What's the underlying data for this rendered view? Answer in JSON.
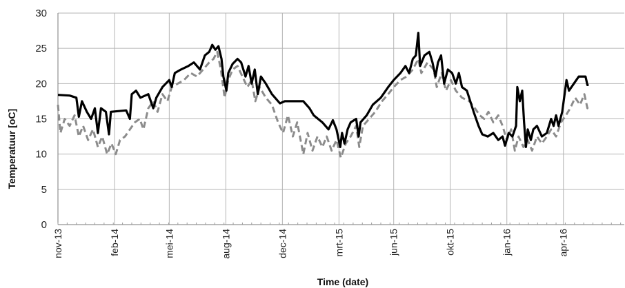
{
  "chart_data": {
    "type": "line",
    "xlabel": "Time (date)",
    "ylabel": "Temperatuur [oC]",
    "ylim": [
      0,
      30
    ],
    "yticks": [
      0,
      5,
      10,
      15,
      20,
      25,
      30
    ],
    "xlim": [
      "2013-11-01",
      "2016-05-10"
    ],
    "xticks": [
      {
        "date": "2013-11-01",
        "label": "nov-13"
      },
      {
        "date": "2014-02-01",
        "label": "feb-14"
      },
      {
        "date": "2014-05-01",
        "label": "mei-14"
      },
      {
        "date": "2014-08-01",
        "label": "aug-14"
      },
      {
        "date": "2014-11-01",
        "label": "dec-14"
      },
      {
        "date": "2015-02-01",
        "label": "mrt-15"
      },
      {
        "date": "2015-05-01",
        "label": "jun-15"
      },
      {
        "date": "2015-08-01",
        "label": "okt-15"
      },
      {
        "date": "2015-11-01",
        "label": "jan-16"
      },
      {
        "date": "2016-02-01",
        "label": "apr-16"
      }
    ],
    "grid": true,
    "colors": {
      "series_solid": "#000000",
      "series_dashed": "#8c8c8c",
      "grid": "#b4b4b4"
    },
    "series": [
      {
        "style": "solid",
        "points": [
          [
            "2013-11-01",
            18.4
          ],
          [
            "2013-11-20",
            18.3
          ],
          [
            "2013-12-01",
            18.0
          ],
          [
            "2013-12-05",
            15.3
          ],
          [
            "2013-12-10",
            17.5
          ],
          [
            "2013-12-18",
            16.0
          ],
          [
            "2013-12-25",
            15.0
          ],
          [
            "2013-12-31",
            16.5
          ],
          [
            "2014-01-05",
            13.0
          ],
          [
            "2014-01-10",
            16.5
          ],
          [
            "2014-01-18",
            16.0
          ],
          [
            "2014-01-23",
            12.8
          ],
          [
            "2014-01-26",
            16.0
          ],
          [
            "2014-02-20",
            16.2
          ],
          [
            "2014-02-26",
            15.0
          ],
          [
            "2014-03-01",
            18.5
          ],
          [
            "2014-03-08",
            19.0
          ],
          [
            "2014-03-15",
            18.0
          ],
          [
            "2014-03-28",
            18.5
          ],
          [
            "2014-04-05",
            16.5
          ],
          [
            "2014-04-10",
            18.0
          ],
          [
            "2014-04-20",
            19.5
          ],
          [
            "2014-05-01",
            20.5
          ],
          [
            "2014-05-05",
            19.5
          ],
          [
            "2014-05-10",
            21.5
          ],
          [
            "2014-05-20",
            22.0
          ],
          [
            "2014-06-01",
            22.5
          ],
          [
            "2014-06-10",
            23.0
          ],
          [
            "2014-06-20",
            22.0
          ],
          [
            "2014-06-28",
            24.0
          ],
          [
            "2014-07-05",
            24.5
          ],
          [
            "2014-07-10",
            25.5
          ],
          [
            "2014-07-15",
            24.8
          ],
          [
            "2014-07-20",
            25.3
          ],
          [
            "2014-07-25",
            23.5
          ],
          [
            "2014-07-28",
            21.0
          ],
          [
            "2014-08-02",
            19.0
          ],
          [
            "2014-08-05",
            21.5
          ],
          [
            "2014-08-12",
            22.8
          ],
          [
            "2014-08-20",
            23.5
          ],
          [
            "2014-08-26",
            23.0
          ],
          [
            "2014-09-02",
            21.0
          ],
          [
            "2014-09-07",
            22.5
          ],
          [
            "2014-09-12",
            20.0
          ],
          [
            "2014-09-17",
            22.0
          ],
          [
            "2014-09-22",
            18.5
          ],
          [
            "2014-09-27",
            21.0
          ],
          [
            "2014-10-05",
            20.0
          ],
          [
            "2014-10-15",
            18.5
          ],
          [
            "2014-10-28",
            17.2
          ],
          [
            "2014-11-05",
            17.5
          ],
          [
            "2014-12-05",
            17.5
          ],
          [
            "2014-12-15",
            16.5
          ],
          [
            "2014-12-22",
            15.5
          ],
          [
            "2015-01-05",
            14.5
          ],
          [
            "2015-01-15",
            13.5
          ],
          [
            "2015-01-22",
            14.8
          ],
          [
            "2015-01-28",
            13.5
          ],
          [
            "2015-02-03",
            11.0
          ],
          [
            "2015-02-06",
            13.0
          ],
          [
            "2015-02-10",
            11.5
          ],
          [
            "2015-02-15",
            13.5
          ],
          [
            "2015-02-20",
            14.5
          ],
          [
            "2015-03-01",
            15.0
          ],
          [
            "2015-03-05",
            12.5
          ],
          [
            "2015-03-08",
            14.5
          ],
          [
            "2015-03-18",
            15.5
          ],
          [
            "2015-03-28",
            17.0
          ],
          [
            "2015-04-10",
            18.0
          ],
          [
            "2015-04-22",
            19.5
          ],
          [
            "2015-05-01",
            20.5
          ],
          [
            "2015-05-12",
            21.5
          ],
          [
            "2015-05-20",
            22.5
          ],
          [
            "2015-05-26",
            21.5
          ],
          [
            "2015-06-01",
            23.5
          ],
          [
            "2015-06-06",
            24.0
          ],
          [
            "2015-06-10",
            27.2
          ],
          [
            "2015-06-13",
            22.5
          ],
          [
            "2015-06-20",
            24.0
          ],
          [
            "2015-06-28",
            24.5
          ],
          [
            "2015-07-03",
            23.0
          ],
          [
            "2015-07-08",
            21.0
          ],
          [
            "2015-07-12",
            23.0
          ],
          [
            "2015-07-17",
            24.0
          ],
          [
            "2015-07-22",
            20.0
          ],
          [
            "2015-07-28",
            22.0
          ],
          [
            "2015-08-04",
            21.5
          ],
          [
            "2015-08-10",
            20.0
          ],
          [
            "2015-08-15",
            21.5
          ],
          [
            "2015-08-20",
            19.5
          ],
          [
            "2015-08-28",
            19.0
          ],
          [
            "2015-09-08",
            16.0
          ],
          [
            "2015-09-16",
            14.0
          ],
          [
            "2015-09-22",
            12.8
          ],
          [
            "2015-10-01",
            12.5
          ],
          [
            "2015-10-10",
            13.0
          ],
          [
            "2015-10-18",
            12.0
          ],
          [
            "2015-10-25",
            12.5
          ],
          [
            "2015-10-29",
            11.2
          ],
          [
            "2015-11-04",
            13.0
          ],
          [
            "2015-11-10",
            12.5
          ],
          [
            "2015-11-16",
            14.0
          ],
          [
            "2015-11-18",
            19.5
          ],
          [
            "2015-11-22",
            17.5
          ],
          [
            "2015-11-26",
            19.0
          ],
          [
            "2015-11-29",
            14.5
          ],
          [
            "2015-12-02",
            11.0
          ],
          [
            "2015-12-05",
            13.5
          ],
          [
            "2015-12-10",
            12.0
          ],
          [
            "2015-12-14",
            13.5
          ],
          [
            "2015-12-20",
            14.0
          ],
          [
            "2015-12-28",
            12.5
          ],
          [
            "2016-01-05",
            13.0
          ],
          [
            "2016-01-12",
            15.0
          ],
          [
            "2016-01-16",
            14.0
          ],
          [
            "2016-01-20",
            15.5
          ],
          [
            "2016-01-24",
            14.0
          ],
          [
            "2016-01-30",
            16.0
          ],
          [
            "2016-02-06",
            20.5
          ],
          [
            "2016-02-10",
            19.0
          ],
          [
            "2016-02-18",
            20.0
          ],
          [
            "2016-02-26",
            21.0
          ],
          [
            "2016-03-08",
            21.0
          ],
          [
            "2016-03-11",
            19.8
          ],
          [
            "2016-03-13",
            19.8
          ]
        ]
      },
      {
        "style": "dashed",
        "points": [
          [
            "2013-11-01",
            17.0
          ],
          [
            "2013-11-05",
            13.0
          ],
          [
            "2013-11-12",
            15.0
          ],
          [
            "2013-11-20",
            14.0
          ],
          [
            "2013-11-28",
            15.5
          ],
          [
            "2013-12-05",
            12.5
          ],
          [
            "2013-12-12",
            14.0
          ],
          [
            "2013-12-20",
            12.0
          ],
          [
            "2013-12-28",
            13.5
          ],
          [
            "2014-01-05",
            11.0
          ],
          [
            "2014-01-12",
            12.5
          ],
          [
            "2014-01-20",
            10.0
          ],
          [
            "2014-01-27",
            11.5
          ],
          [
            "2014-02-03",
            10.0
          ],
          [
            "2014-02-10",
            12.0
          ],
          [
            "2014-02-18",
            12.5
          ],
          [
            "2014-02-26",
            13.5
          ],
          [
            "2014-03-06",
            14.5
          ],
          [
            "2014-03-14",
            15.0
          ],
          [
            "2014-03-20",
            13.5
          ],
          [
            "2014-03-28",
            16.5
          ],
          [
            "2014-04-05",
            17.5
          ],
          [
            "2014-04-12",
            16.0
          ],
          [
            "2014-04-20",
            18.5
          ],
          [
            "2014-04-28",
            17.5
          ],
          [
            "2014-05-05",
            19.5
          ],
          [
            "2014-05-15",
            20.0
          ],
          [
            "2014-05-25",
            20.5
          ],
          [
            "2014-06-05",
            21.5
          ],
          [
            "2014-06-15",
            21.0
          ],
          [
            "2014-06-25",
            22.0
          ],
          [
            "2014-07-05",
            23.0
          ],
          [
            "2014-07-12",
            23.5
          ],
          [
            "2014-07-18",
            24.5
          ],
          [
            "2014-07-24",
            22.0
          ],
          [
            "2014-07-30",
            18.0
          ],
          [
            "2014-08-05",
            20.5
          ],
          [
            "2014-08-12",
            22.0
          ],
          [
            "2014-08-20",
            22.5
          ],
          [
            "2014-08-28",
            21.0
          ],
          [
            "2014-09-05",
            19.5
          ],
          [
            "2014-09-12",
            20.5
          ],
          [
            "2014-09-18",
            17.5
          ],
          [
            "2014-09-25",
            19.5
          ],
          [
            "2014-10-05",
            18.0
          ],
          [
            "2014-10-15",
            17.0
          ],
          [
            "2014-10-25",
            14.5
          ],
          [
            "2014-11-02",
            13.0
          ],
          [
            "2014-11-10",
            15.5
          ],
          [
            "2014-11-18",
            12.5
          ],
          [
            "2014-11-25",
            14.5
          ],
          [
            "2014-12-05",
            10.0
          ],
          [
            "2014-12-12",
            13.0
          ],
          [
            "2014-12-20",
            10.5
          ],
          [
            "2014-12-28",
            12.5
          ],
          [
            "2015-01-05",
            11.0
          ],
          [
            "2015-01-12",
            12.5
          ],
          [
            "2015-01-20",
            10.5
          ],
          [
            "2015-01-28",
            12.0
          ],
          [
            "2015-02-04",
            9.5
          ],
          [
            "2015-02-12",
            11.5
          ],
          [
            "2015-02-20",
            12.5
          ],
          [
            "2015-03-01",
            14.0
          ],
          [
            "2015-03-06",
            11.0
          ],
          [
            "2015-03-12",
            14.0
          ],
          [
            "2015-03-22",
            15.0
          ],
          [
            "2015-04-01",
            16.0
          ],
          [
            "2015-04-12",
            17.5
          ],
          [
            "2015-04-22",
            18.5
          ],
          [
            "2015-05-01",
            19.5
          ],
          [
            "2015-05-12",
            20.5
          ],
          [
            "2015-05-22",
            21.0
          ],
          [
            "2015-06-01",
            22.0
          ],
          [
            "2015-06-10",
            23.5
          ],
          [
            "2015-06-15",
            21.5
          ],
          [
            "2015-06-25",
            23.0
          ],
          [
            "2015-07-05",
            22.0
          ],
          [
            "2015-07-10",
            19.5
          ],
          [
            "2015-07-18",
            21.5
          ],
          [
            "2015-07-25",
            19.0
          ],
          [
            "2015-08-02",
            20.5
          ],
          [
            "2015-08-10",
            19.0
          ],
          [
            "2015-08-20",
            18.0
          ],
          [
            "2015-09-01",
            17.5
          ],
          [
            "2015-09-10",
            16.5
          ],
          [
            "2015-09-18",
            15.5
          ],
          [
            "2015-09-25",
            15.0
          ],
          [
            "2015-10-02",
            16.0
          ],
          [
            "2015-10-10",
            14.5
          ],
          [
            "2015-10-18",
            15.5
          ],
          [
            "2015-10-25",
            14.0
          ],
          [
            "2015-11-01",
            12.0
          ],
          [
            "2015-11-08",
            13.5
          ],
          [
            "2015-11-14",
            10.5
          ],
          [
            "2015-11-20",
            12.5
          ],
          [
            "2015-11-28",
            11.0
          ],
          [
            "2015-12-05",
            12.0
          ],
          [
            "2015-12-12",
            10.5
          ],
          [
            "2015-12-20",
            12.5
          ],
          [
            "2015-12-28",
            11.5
          ],
          [
            "2016-01-05",
            12.5
          ],
          [
            "2016-01-12",
            13.5
          ],
          [
            "2016-01-20",
            12.5
          ],
          [
            "2016-01-28",
            14.5
          ],
          [
            "2016-02-05",
            15.5
          ],
          [
            "2016-02-12",
            16.5
          ],
          [
            "2016-02-20",
            18.0
          ],
          [
            "2016-02-28",
            17.0
          ],
          [
            "2016-03-06",
            18.5
          ],
          [
            "2016-03-11",
            16.5
          ],
          [
            "2016-03-13",
            17.0
          ]
        ]
      }
    ]
  }
}
